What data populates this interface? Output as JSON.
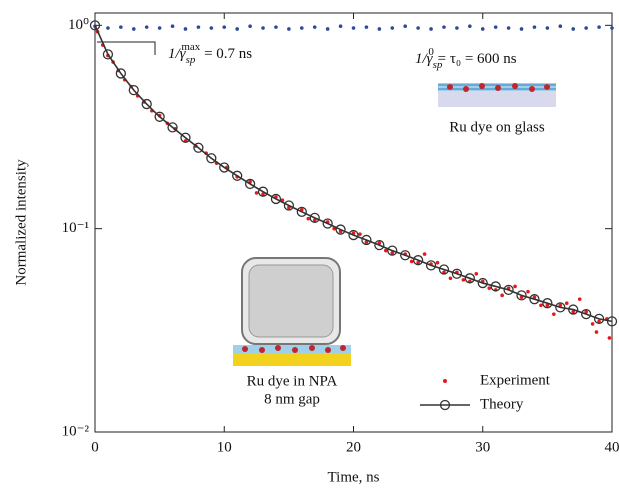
{
  "chart_data": {
    "type": "line",
    "x_label": "Time, ns",
    "y_label": "Normalized intensity",
    "log_y": true,
    "xlim": [
      0,
      40
    ],
    "ylim": [
      0.01,
      1.15
    ],
    "xticks": [
      0,
      10,
      20,
      30,
      40
    ],
    "yticks": [
      {
        "value": 1,
        "label": "10⁰"
      },
      {
        "value": 0.1,
        "label": "10⁻¹"
      },
      {
        "value": 0.01,
        "label": "10⁻²"
      }
    ],
    "legend": "lower right",
    "annotations": [
      {
        "lead": "1/γ",
        "sub": "sp",
        "sup": "max",
        "rest": " = 0.7 ns"
      },
      {
        "lead": "1/γ",
        "sub": "sp",
        "sup": "0",
        "rest": " = τ₀ = 600 ns"
      },
      {
        "text": "Ru dye on glass"
      },
      {
        "text": "Ru dye in NPA"
      },
      {
        "text": "8 nm gap"
      }
    ],
    "series": [
      {
        "color": "#2b4a9a",
        "mode": "markers",
        "x": [
          0,
          1,
          2,
          3,
          4,
          5,
          6,
          7,
          8,
          9,
          10,
          11,
          12,
          13,
          14,
          15,
          16,
          17,
          18,
          19,
          20,
          21,
          22,
          23,
          24,
          25,
          26,
          27,
          28,
          29,
          30,
          31,
          32,
          33,
          34,
          35,
          36,
          37,
          38,
          39,
          40
        ],
        "values": [
          0.99,
          0.97,
          0.98,
          0.96,
          0.98,
          0.97,
          0.99,
          0.96,
          0.98,
          0.97,
          0.98,
          0.96,
          0.99,
          0.97,
          0.98,
          0.96,
          0.97,
          0.98,
          0.96,
          0.99,
          0.97,
          0.98,
          0.96,
          0.97,
          0.99,
          0.97,
          0.96,
          0.98,
          0.97,
          0.99,
          0.96,
          0.98,
          0.97,
          0.96,
          0.98,
          0.97,
          0.99,
          0.96,
          0.97,
          0.98,
          0.97
        ]
      },
      {
        "name": "Experiment",
        "color": "#e8181a",
        "mode": "markers",
        "x": [
          0.2,
          0.6,
          1,
          1.4,
          1.8,
          2.3,
          2.8,
          3.3,
          3.8,
          4.4,
          5,
          5.6,
          6.2,
          7,
          7.8,
          8.6,
          9.4,
          10.2,
          11,
          12,
          13,
          14,
          15,
          16,
          17,
          18,
          19,
          20,
          21,
          22,
          23,
          24,
          25,
          26,
          27,
          28,
          29,
          30,
          31,
          32,
          33,
          34,
          35,
          36,
          37,
          38,
          39,
          39.6,
          12.5,
          14.5,
          16.5,
          18.5,
          20.5,
          22.5,
          24.5,
          26.5,
          28.5,
          30.5,
          32.5,
          34.5,
          36.5,
          38.5,
          39.8,
          25.5,
          29.5,
          33.5,
          37.5,
          27.5,
          31.5,
          35.5,
          38.8
        ],
        "values": [
          0.93,
          0.8,
          0.71,
          0.66,
          0.6,
          0.54,
          0.5,
          0.45,
          0.42,
          0.38,
          0.36,
          0.33,
          0.31,
          0.27,
          0.255,
          0.235,
          0.21,
          0.2,
          0.18,
          0.17,
          0.148,
          0.143,
          0.127,
          0.124,
          0.11,
          0.108,
          0.097,
          0.095,
          0.086,
          0.085,
          0.076,
          0.075,
          0.068,
          0.067,
          0.061,
          0.061,
          0.055,
          0.055,
          0.05,
          0.051,
          0.046,
          0.046,
          0.042,
          0.042,
          0.039,
          0.039,
          0.035,
          0.036,
          0.15,
          0.138,
          0.112,
          0.1,
          0.094,
          0.078,
          0.069,
          0.068,
          0.056,
          0.051,
          0.052,
          0.042,
          0.043,
          0.034,
          0.029,
          0.075,
          0.06,
          0.049,
          0.045,
          0.057,
          0.047,
          0.038,
          0.031
        ]
      },
      {
        "name": "Theory",
        "color": "#333333",
        "mode": "lines+markers",
        "x": [
          0,
          1,
          2,
          3,
          4,
          5,
          6,
          7,
          8,
          9,
          10,
          11,
          12,
          13,
          14,
          15,
          16,
          17,
          18,
          19,
          20,
          21,
          22,
          23,
          24,
          25,
          26,
          27,
          28,
          29,
          30,
          31,
          32,
          33,
          34,
          35,
          36,
          37,
          38,
          39,
          40
        ],
        "values": [
          1.0,
          0.72,
          0.58,
          0.48,
          0.41,
          0.355,
          0.315,
          0.28,
          0.25,
          0.222,
          0.2,
          0.182,
          0.166,
          0.152,
          0.14,
          0.13,
          0.121,
          0.113,
          0.106,
          0.099,
          0.093,
          0.088,
          0.083,
          0.078,
          0.074,
          0.07,
          0.066,
          0.063,
          0.06,
          0.057,
          0.054,
          0.052,
          0.05,
          0.047,
          0.045,
          0.043,
          0.041,
          0.04,
          0.038,
          0.036,
          0.035
        ]
      }
    ]
  }
}
